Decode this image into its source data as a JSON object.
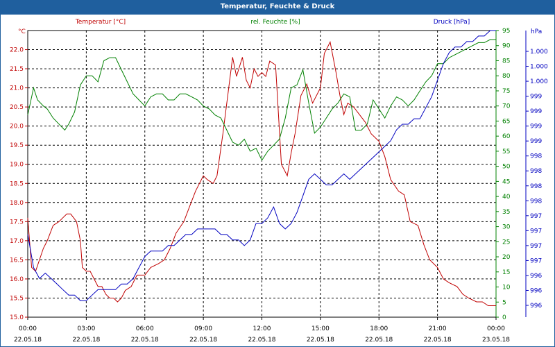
{
  "colors": {
    "temperature": "#c00000",
    "humidity": "#008000",
    "pressure": "#0000c0",
    "titlebar": "#1f5f9e"
  },
  "chart_data": {
    "type": "line",
    "title": "Temperatur, Feuchte & Druck",
    "x": {
      "tick_labels": [
        {
          "time": "00:00",
          "date": "22.05.18"
        },
        {
          "time": "03:00",
          "date": "22.05.18"
        },
        {
          "time": "06:00",
          "date": "22.05.18"
        },
        {
          "time": "09:00",
          "date": "22.05.18"
        },
        {
          "time": "12:00",
          "date": "22.05.18"
        },
        {
          "time": "15:00",
          "date": "22.05.18"
        },
        {
          "time": "18:00",
          "date": "22.05.18"
        },
        {
          "time": "21:00",
          "date": "22.05.18"
        },
        {
          "time": "00:00",
          "date": "23.05.18"
        }
      ],
      "range_hours": [
        0,
        24
      ]
    },
    "axes": {
      "temperature": {
        "label": "Temperatur [°C]",
        "unit": "°C",
        "range": [
          15.0,
          22.5
        ],
        "ticks": [
          "15.0",
          "15.5",
          "16.0",
          "16.5",
          "17.0",
          "17.5",
          "18.0",
          "18.5",
          "19.0",
          "19.5",
          "20.0",
          "20.5",
          "21.0",
          "21.5",
          "22.0"
        ]
      },
      "humidity": {
        "label": "rel. Feuchte [%]",
        "unit": "%",
        "range": [
          0,
          95
        ],
        "ticks": [
          "0",
          "5",
          "10",
          "15",
          "20",
          "25",
          "30",
          "35",
          "40",
          "45",
          "50",
          "55",
          "60",
          "65",
          "70",
          "75",
          "80",
          "85",
          "90",
          "95"
        ]
      },
      "pressure": {
        "label": "Druck [hPa]",
        "unit": "hPa",
        "range": [
          995.6,
          1000.8
        ],
        "ticks": [
          "996",
          "996",
          "996",
          "997",
          "997",
          "997",
          "997",
          "998",
          "998",
          "998",
          "998",
          "999",
          "999",
          "999",
          "999",
          "1.000",
          "1.000",
          "1.000"
        ]
      }
    },
    "series": [
      {
        "name": "Temperatur",
        "axis": "temperature",
        "x": [
          0,
          0.2,
          0.4,
          0.6,
          0.8,
          1.0,
          1.3,
          1.6,
          1.8,
          2.0,
          2.2,
          2.5,
          2.7,
          2.8,
          3.0,
          3.2,
          3.4,
          3.6,
          3.8,
          4.0,
          4.2,
          4.4,
          4.6,
          4.8,
          5.0,
          5.3,
          5.6,
          6.0,
          6.3,
          6.7,
          7.0,
          7.3,
          7.6,
          8.0,
          8.3,
          8.6,
          9.0,
          9.2,
          9.5,
          9.7,
          10.0,
          10.3,
          10.5,
          10.7,
          11.0,
          11.2,
          11.4,
          11.6,
          11.8,
          12.0,
          12.2,
          12.4,
          12.7,
          13.0,
          13.3,
          13.5,
          13.7,
          14.0,
          14.3,
          14.6,
          15.0,
          15.2,
          15.5,
          15.8,
          16.0,
          16.2,
          16.4,
          16.7,
          17.0,
          17.3,
          17.6,
          18.0,
          18.3,
          18.6,
          19.0,
          19.3,
          19.6,
          20.0,
          20.3,
          20.6,
          21.0,
          21.3,
          21.6,
          22.0,
          22.3,
          22.6,
          23.0,
          23.3,
          23.6,
          24.0
        ],
        "values": [
          17.6,
          16.3,
          16.2,
          16.5,
          16.8,
          17.0,
          17.4,
          17.5,
          17.6,
          17.7,
          17.7,
          17.5,
          17.0,
          16.3,
          16.2,
          16.2,
          16.0,
          15.8,
          15.8,
          15.6,
          15.5,
          15.5,
          15.4,
          15.5,
          15.7,
          15.8,
          16.1,
          16.1,
          16.3,
          16.4,
          16.5,
          16.8,
          17.2,
          17.5,
          17.9,
          18.3,
          18.7,
          18.6,
          18.5,
          18.7,
          19.8,
          21.0,
          21.8,
          21.3,
          21.8,
          21.2,
          21.0,
          21.5,
          21.3,
          21.4,
          21.3,
          21.7,
          21.6,
          19.0,
          18.7,
          19.3,
          19.8,
          20.8,
          21.1,
          20.6,
          21.0,
          21.9,
          22.2,
          21.4,
          20.8,
          20.3,
          20.6,
          20.5,
          20.3,
          20.1,
          19.8,
          19.6,
          19.2,
          18.6,
          18.3,
          18.2,
          17.5,
          17.4,
          16.9,
          16.5,
          16.3,
          16.0,
          15.9,
          15.8,
          15.6,
          15.5,
          15.4,
          15.4,
          15.3,
          15.3
        ]
      },
      {
        "name": "rel. Feuchte",
        "axis": "humidity",
        "x": [
          0,
          0.3,
          0.5,
          0.8,
          1.0,
          1.3,
          1.6,
          1.9,
          2.1,
          2.4,
          2.7,
          3.0,
          3.3,
          3.6,
          3.9,
          4.2,
          4.5,
          4.8,
          5.1,
          5.4,
          5.7,
          6.0,
          6.3,
          6.6,
          6.9,
          7.2,
          7.5,
          7.8,
          8.1,
          8.4,
          8.7,
          9.0,
          9.3,
          9.6,
          9.9,
          10.2,
          10.5,
          10.8,
          11.1,
          11.4,
          11.7,
          12.0,
          12.3,
          12.6,
          12.9,
          13.2,
          13.5,
          13.8,
          14.1,
          14.4,
          14.7,
          15.0,
          15.3,
          15.6,
          15.9,
          16.2,
          16.5,
          16.8,
          17.1,
          17.4,
          17.7,
          18.0,
          18.3,
          18.6,
          18.9,
          19.2,
          19.5,
          19.8,
          20.1,
          20.4,
          20.7,
          21.0,
          21.3,
          21.6,
          21.9,
          22.2,
          22.5,
          22.8,
          23.1,
          23.4,
          23.7,
          24.0
        ],
        "values": [
          67,
          76,
          72,
          70,
          69,
          66,
          64,
          62,
          64,
          68,
          77,
          80,
          80,
          78,
          85,
          86,
          86,
          82,
          78,
          74,
          72,
          70,
          73,
          74,
          74,
          72,
          72,
          74,
          74,
          73,
          72,
          70,
          69,
          67,
          66,
          62,
          58,
          57,
          59,
          55,
          56,
          52,
          55,
          57,
          59,
          66,
          76,
          77,
          82,
          71,
          61,
          63,
          66,
          69,
          71,
          74,
          73,
          62,
          62,
          64,
          72,
          69,
          66,
          70,
          73,
          72,
          70,
          72,
          75,
          78,
          80,
          84,
          84,
          86,
          87,
          88,
          89,
          90,
          91,
          91,
          92,
          92
        ]
      },
      {
        "name": "Druck",
        "axis": "pressure",
        "x": [
          0,
          0.3,
          0.6,
          0.9,
          1.2,
          1.5,
          1.8,
          2.1,
          2.4,
          2.7,
          3.0,
          3.3,
          3.6,
          3.9,
          4.2,
          4.5,
          4.8,
          5.1,
          5.4,
          5.7,
          6.0,
          6.3,
          6.6,
          6.9,
          7.2,
          7.5,
          7.8,
          8.1,
          8.4,
          8.7,
          9.0,
          9.3,
          9.6,
          9.9,
          10.2,
          10.5,
          10.8,
          11.1,
          11.4,
          11.7,
          12.0,
          12.3,
          12.6,
          12.9,
          13.2,
          13.5,
          13.8,
          14.1,
          14.4,
          14.7,
          15.0,
          15.3,
          15.6,
          15.9,
          16.2,
          16.5,
          16.8,
          17.1,
          17.4,
          17.7,
          18.0,
          18.3,
          18.6,
          18.9,
          19.2,
          19.5,
          19.8,
          20.1,
          20.4,
          20.7,
          21.0,
          21.3,
          21.6,
          21.9,
          22.2,
          22.5,
          22.8,
          23.1,
          23.4,
          23.7,
          24.0
        ],
        "values": [
          997.1,
          996.5,
          996.3,
          996.4,
          996.3,
          996.2,
          996.1,
          996.0,
          996.0,
          995.9,
          995.9,
          996.0,
          996.1,
          996.1,
          996.1,
          996.1,
          996.2,
          996.2,
          996.3,
          996.5,
          996.7,
          996.8,
          996.8,
          996.8,
          996.9,
          996.9,
          997.0,
          997.1,
          997.1,
          997.2,
          997.2,
          997.2,
          997.2,
          997.1,
          997.1,
          997.0,
          997.0,
          996.9,
          997.0,
          997.3,
          997.3,
          997.4,
          997.6,
          997.3,
          997.2,
          997.3,
          997.5,
          997.8,
          998.1,
          998.2,
          998.1,
          998.0,
          998.0,
          998.1,
          998.2,
          998.1,
          998.2,
          998.3,
          998.4,
          998.5,
          998.6,
          998.7,
          998.8,
          999.0,
          999.1,
          999.1,
          999.2,
          999.2,
          999.4,
          999.6,
          999.9,
          1000.2,
          1000.4,
          1000.5,
          1000.5,
          1000.6,
          1000.6,
          1000.7,
          1000.7,
          1000.8,
          1000.8
        ]
      }
    ]
  }
}
